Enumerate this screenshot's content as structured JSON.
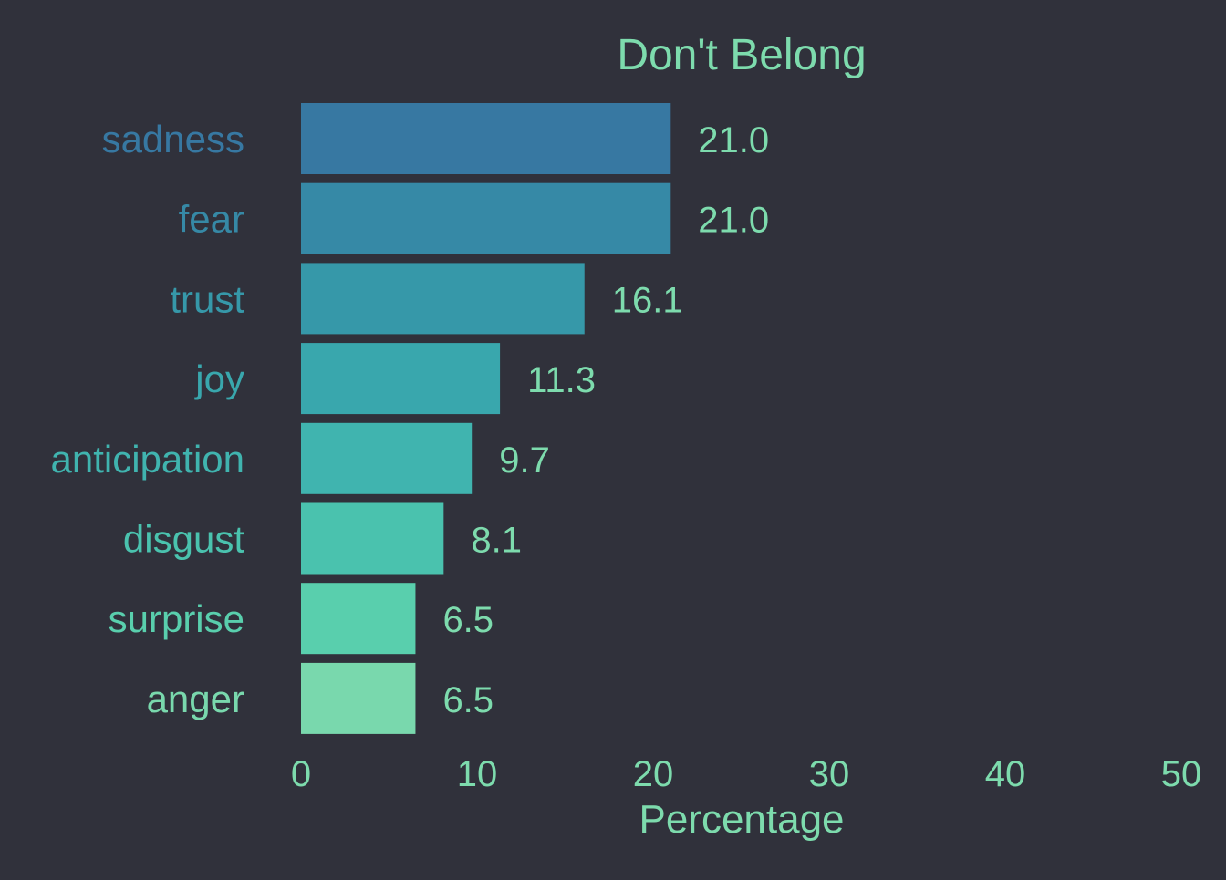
{
  "chart_data": {
    "type": "bar",
    "orientation": "horizontal",
    "title": "Don't Belong",
    "xlabel": "Percentage",
    "ylabel": "",
    "categories": [
      "sadness",
      "fear",
      "trust",
      "joy",
      "anticipation",
      "disgust",
      "surprise",
      "anger"
    ],
    "values": [
      21.0,
      21.0,
      16.1,
      11.3,
      9.7,
      8.1,
      6.5,
      6.5
    ],
    "value_labels": [
      "21.0",
      "21.0",
      "16.1",
      "11.3",
      "9.7",
      "8.1",
      "6.5",
      "6.5"
    ],
    "xlim": [
      0,
      50
    ],
    "xticks": [
      0,
      10,
      20,
      30,
      40,
      50
    ],
    "grid": false,
    "legend": "none",
    "bar_colors": [
      "#3778a2",
      "#3689a6",
      "#3698a9",
      "#39a7ad",
      "#40b4af",
      "#4ac2ae",
      "#59cfad",
      "#79d8ad"
    ],
    "label_colors": [
      "#3778a2",
      "#3689a6",
      "#3698a9",
      "#39a7ad",
      "#40b4af",
      "#4ac2ae",
      "#59cfad",
      "#79d8ad"
    ],
    "text_color": "#7ddbad",
    "background": "#30313b"
  }
}
